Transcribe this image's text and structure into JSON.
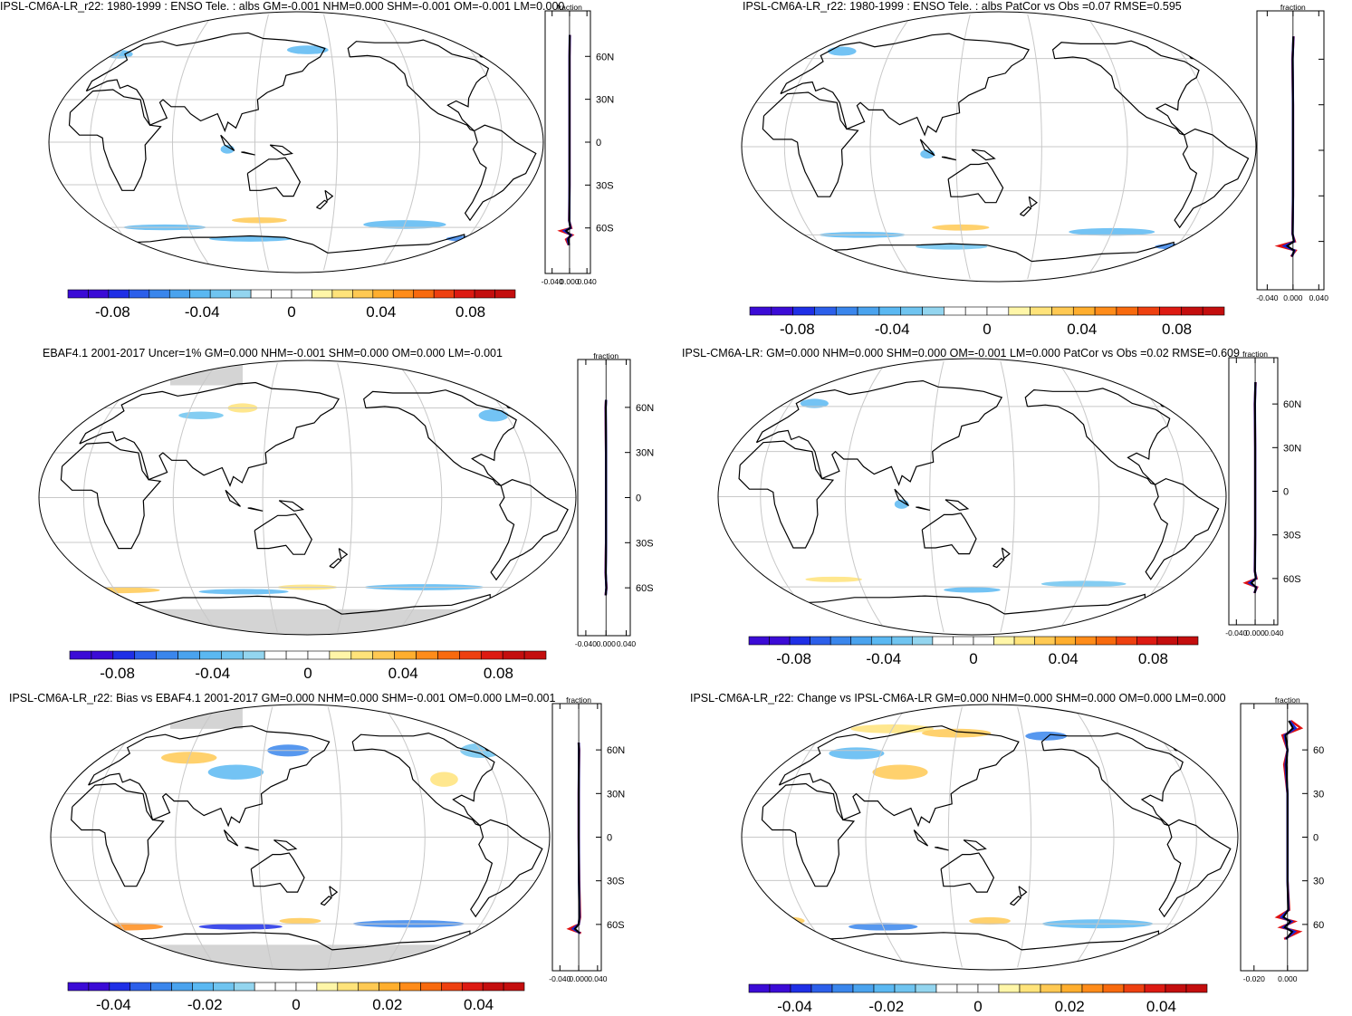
{
  "panel_colors": [
    "#3b0bd6",
    "#1f2fe6",
    "#2c5fea",
    "#3a86ec",
    "#4aa3ee",
    "#5ab8f2",
    "#6fc4f0",
    "#93d5ef",
    "#ffffff",
    "#ffffff",
    "#fff6a8",
    "#ffe37a",
    "#ffc953",
    "#ffae2e",
    "#ff8c1a",
    "#f86a0e",
    "#ee4010",
    "#dd1a12",
    "#c40e0e"
  ],
  "profile_colors": {
    "model": "#e01010",
    "obs": "#1525d8",
    "mean": "#000000"
  },
  "chart_data": [
    {
      "type": "heatmap",
      "title": "IPSL-CM6A-LR_r22: 1980-1999 : ENSO Tele. : albs GM=-0.001 NHM=0.000 SHM=-0.001 OM=-0.001 LM=0.000",
      "colorbar_ticks": [
        "-0.08",
        "-0.04",
        "0",
        "0.04",
        "0.08"
      ],
      "profile_title": "fraction",
      "profile_xticks": [
        "-0.040",
        "0.000",
        "0.040"
      ],
      "profile_yticks": [
        "60N",
        "30N",
        "0",
        "30S",
        "60S"
      ],
      "zonal_profile": {
        "lat": [
          75,
          60,
          30,
          0,
          -30,
          -55,
          -60,
          -62,
          -65,
          -68,
          -72
        ],
        "values": [
          0.001,
          0.0,
          0.0,
          0.0,
          0.0,
          -0.001,
          0.004,
          -0.02,
          0.006,
          -0.008,
          -0.002
        ]
      }
    },
    {
      "type": "heatmap",
      "title": "IPSL-CM6A-LR_r22: 1980-1999 : ENSO Tele. : albs PatCor vs Obs =0.07 RMSE=0.595",
      "colorbar_ticks": [
        "-0.08",
        "-0.04",
        "0",
        "0.04",
        "0.08"
      ],
      "profile_title": "fraction",
      "profile_xticks": [
        "-0.040",
        "0.000",
        "0.040"
      ],
      "profile_yticks": [],
      "zonal_profile": {
        "lat": [
          75,
          60,
          30,
          0,
          -30,
          -55,
          -60,
          -63,
          -66,
          -70
        ],
        "values": [
          0.001,
          -0.001,
          0.0,
          0.0,
          0.0,
          -0.001,
          0.003,
          -0.022,
          0.004,
          -0.003
        ]
      }
    },
    {
      "type": "heatmap",
      "title": "EBAF4.1 2001-2017 Uncer=1% GM=0.000 NHM=-0.001 SHM=0.000 OM=0.000 LM=-0.001",
      "colorbar_ticks": [
        "-0.08",
        "-0.04",
        "0",
        "0.04",
        "0.08"
      ],
      "profile_title": "fraction",
      "profile_xticks": [
        "-0.040",
        "0.000",
        "0.040"
      ],
      "profile_yticks": [
        "60N",
        "30N",
        "0",
        "30S",
        "60S"
      ],
      "zonal_profile": {
        "lat": [
          65,
          60,
          30,
          0,
          -30,
          -50,
          -60,
          -65
        ],
        "values": [
          0.0,
          -0.001,
          0.0,
          0.0,
          0.0,
          -0.001,
          0.001,
          -0.001
        ]
      }
    },
    {
      "type": "heatmap",
      "title": "IPSL-CM6A-LR: GM=0.000 NHM=0.000 SHM=0.000 OM=-0.001 LM=0.000 PatCor vs Obs =0.02 RMSE=0.609",
      "colorbar_ticks": [
        "-0.08",
        "-0.04",
        "0",
        "0.04",
        "0.08"
      ],
      "profile_title": "fraction",
      "profile_xticks": [
        "-0.040",
        "0.000",
        "0.040"
      ],
      "profile_yticks": [
        "60N",
        "30N",
        "0",
        "30S",
        "60S"
      ],
      "zonal_profile": {
        "lat": [
          75,
          60,
          30,
          0,
          -30,
          -55,
          -60,
          -63,
          -66,
          -70
        ],
        "values": [
          0.001,
          -0.001,
          0.0,
          0.0,
          0.0,
          -0.001,
          0.003,
          -0.02,
          0.004,
          -0.002
        ]
      }
    },
    {
      "type": "heatmap",
      "title": "IPSL-CM6A-LR_r22: Bias vs EBAF4.1 2001-2017 GM=0.000 NHM=0.000 SHM=-0.001 OM=0.000 LM=0.001",
      "colorbar_ticks": [
        "-0.04",
        "-0.02",
        "0",
        "0.02",
        "0.04"
      ],
      "profile_title": "fraction",
      "profile_xticks": [
        "-0.040",
        "0.000",
        "0.040"
      ],
      "profile_yticks": [
        "60N",
        "30N",
        "0",
        "30S",
        "60S"
      ],
      "zonal_profile": {
        "lat": [
          65,
          60,
          30,
          0,
          -30,
          -55,
          -60,
          -63,
          -66
        ],
        "values": [
          0.0,
          0.001,
          0.0,
          0.0,
          0.001,
          0.003,
          0.0,
          -0.02,
          0.005
        ]
      }
    },
    {
      "type": "heatmap",
      "title": "IPSL-CM6A-LR_r22: Change vs IPSL-CM6A-LR GM=0.000 NHM=0.000 SHM=0.000 OM=0.000 LM=0.000",
      "colorbar_ticks": [
        "-0.04",
        "-0.02",
        "0",
        "0.02",
        "0.04"
      ],
      "profile_title": "fraction",
      "profile_xticks": [
        "-0.020",
        "0.000"
      ],
      "profile_yticks": [
        "60",
        "30",
        "0",
        "30",
        "60"
      ],
      "zonal_profile": {
        "lat": [
          80,
          75,
          70,
          60,
          50,
          30,
          0,
          -30,
          -50,
          -55,
          -58,
          -62,
          -65,
          -70
        ],
        "values": [
          0.002,
          0.008,
          -0.003,
          0.0,
          -0.002,
          0.0,
          0.0,
          0.0,
          0.001,
          -0.006,
          0.004,
          -0.004,
          0.007,
          -0.002
        ]
      }
    }
  ]
}
